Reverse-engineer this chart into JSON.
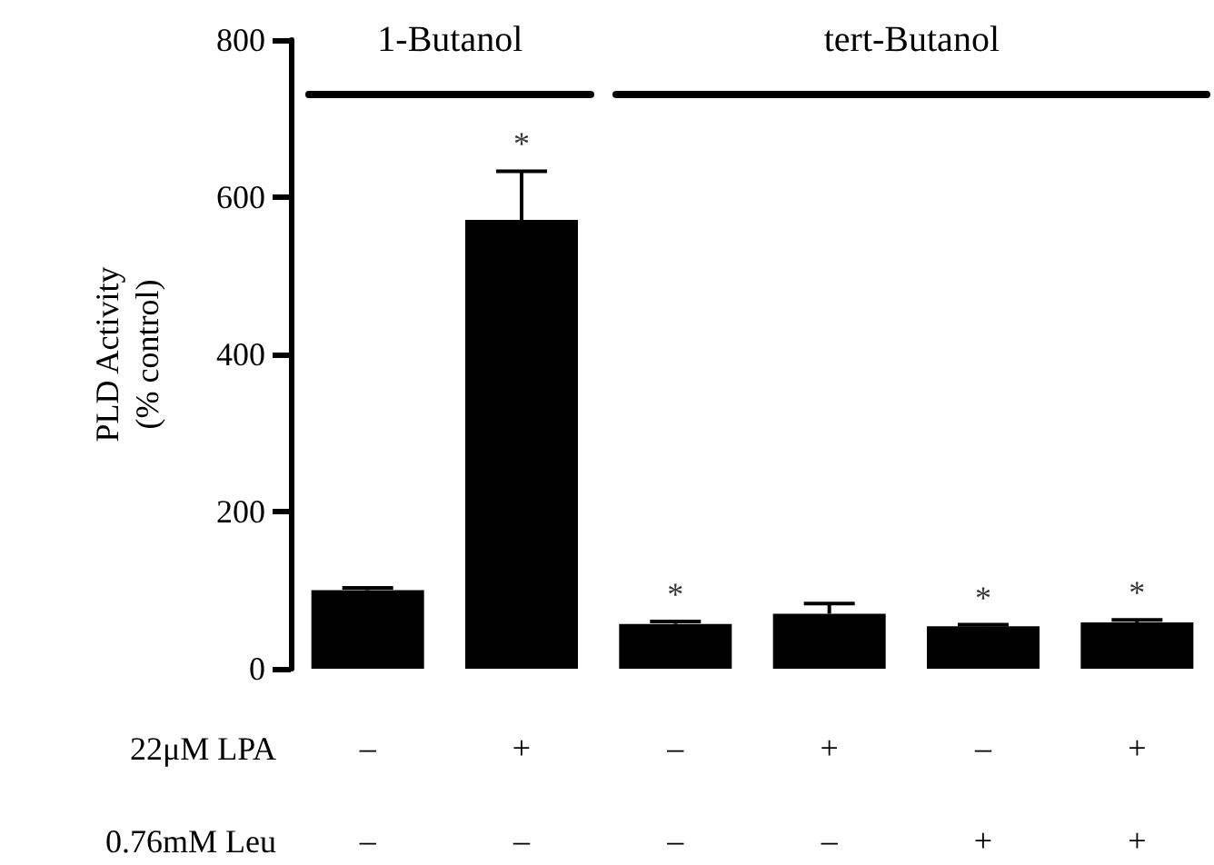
{
  "chart_data": {
    "type": "bar",
    "ylabel": "PLD Activity\n(% control)",
    "categories": [
      "–\n–",
      "+\n–",
      "–\n–",
      "+\n–",
      "–\n+",
      "+\n+"
    ],
    "values": [
      100,
      571,
      57,
      70,
      54,
      59
    ],
    "errors": [
      3,
      62,
      3,
      13,
      2,
      3
    ],
    "value_labels": [
      null,
      "*",
      "*",
      null,
      "*",
      "*"
    ],
    "color": "#000000",
    "ylim": [
      0,
      800
    ],
    "yticks": [
      0,
      200,
      400,
      600,
      800
    ],
    "grid": false,
    "annotations": [
      "1-Butanol",
      "tert-Butanol",
      "22μM LPA",
      "0.76mM Leu"
    ]
  }
}
